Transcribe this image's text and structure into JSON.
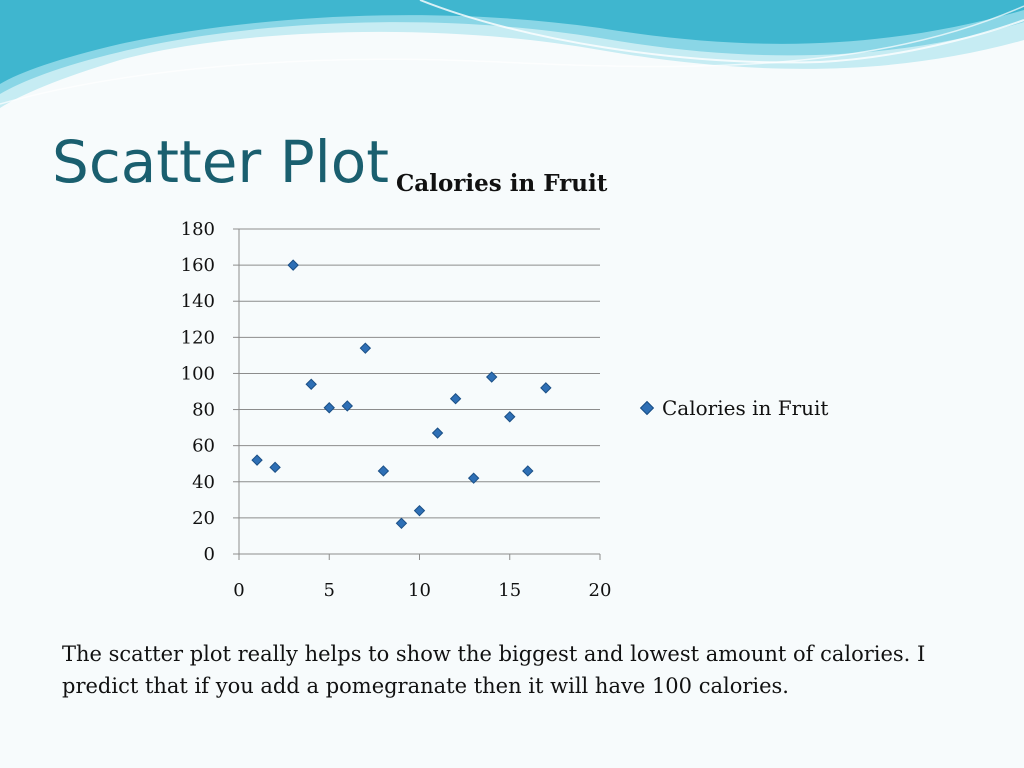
{
  "slide": {
    "title": "Scatter Plot",
    "caption": "The scatter plot really helps to show the biggest and lowest amount of calories. I predict that if you add a pomegranate then it will have 100 calories."
  },
  "colors": {
    "title": "#1a5f6f",
    "marker": "#2e6fb5",
    "wave_light": "#c6ecf3",
    "wave_mid": "#8ad6e6",
    "wave_dark": "#3fb6cf"
  },
  "chart_data": {
    "type": "scatter",
    "title": "Calories in Fruit",
    "xlabel": "",
    "ylabel": "",
    "xlim": [
      0,
      20
    ],
    "ylim": [
      0,
      180
    ],
    "x_ticks": [
      "0",
      "5",
      "10",
      "15",
      "20"
    ],
    "y_ticks": [
      "0",
      "20",
      "40",
      "60",
      "80",
      "100",
      "120",
      "140",
      "160",
      "180"
    ],
    "grid": "horizontal",
    "legend_position": "right",
    "series": [
      {
        "name": "Calories in Fruit",
        "x": [
          1,
          2,
          3,
          4,
          5,
          6,
          7,
          8,
          9,
          10,
          11,
          12,
          13,
          14,
          15,
          16,
          17
        ],
        "y": [
          52,
          48,
          160,
          94,
          81,
          82,
          114,
          46,
          17,
          24,
          67,
          86,
          42,
          98,
          76,
          46,
          92
        ]
      }
    ]
  }
}
